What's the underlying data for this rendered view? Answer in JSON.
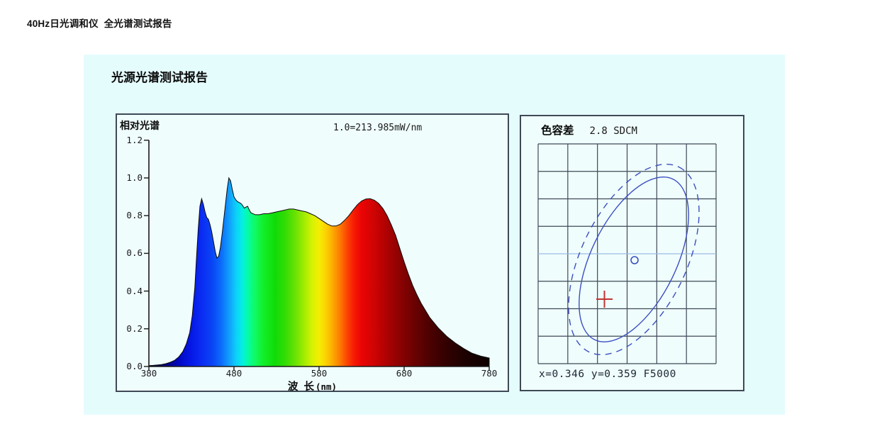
{
  "page": {
    "title": "40Hz日光调和仪  全光谱测试报告"
  },
  "panel": {
    "title": "光源光谱测试报告"
  },
  "spectrum_chart": {
    "label": "相对光谱",
    "scale_note": "1.0=213.985mW/nm",
    "xlabel_cn": "波 长",
    "xlabel_unit": "(nm)",
    "ytick_labels": [
      "1.2",
      "1.0",
      "0.8",
      "0.6",
      "0.4",
      "0.2",
      "0.0"
    ],
    "xtick_labels": [
      "380",
      "480",
      "580",
      "680",
      "780"
    ]
  },
  "tolerance_chart": {
    "label": "色容差",
    "value": "2.8 SDCM",
    "result": "x=0.346 y=0.359 F5000"
  },
  "colors": {
    "panel_bg": "#e5fcfd",
    "chart_bg": "#f0fdfd",
    "box_border": "#3d4a56",
    "axis": "#1a1a1a",
    "grid_line": "#3d4a56",
    "grid_highlight_line": "#9dbce8",
    "ellipse_blue": "#3a4fc0",
    "cross_red": "#c03434",
    "spectrum_stops": [
      [
        380,
        "#02023a"
      ],
      [
        400,
        "#03037a"
      ],
      [
        415,
        "#0208c0"
      ],
      [
        430,
        "#0618e8"
      ],
      [
        442,
        "#0a2cf2"
      ],
      [
        455,
        "#0a46f6"
      ],
      [
        465,
        "#0c6cfa"
      ],
      [
        475,
        "#10a2fc"
      ],
      [
        483,
        "#0cd2f8"
      ],
      [
        490,
        "#04f0e0"
      ],
      [
        497,
        "#06fca0"
      ],
      [
        505,
        "#10fa62"
      ],
      [
        515,
        "#12ee28"
      ],
      [
        528,
        "#10dc08"
      ],
      [
        540,
        "#32dc04"
      ],
      [
        552,
        "#6ae204"
      ],
      [
        563,
        "#a4ec02"
      ],
      [
        572,
        "#d6f202"
      ],
      [
        580,
        "#f4ee02"
      ],
      [
        588,
        "#fcd202"
      ],
      [
        596,
        "#fcaa02"
      ],
      [
        604,
        "#fc7e02"
      ],
      [
        612,
        "#fc4a02"
      ],
      [
        620,
        "#f81e04"
      ],
      [
        630,
        "#ea0404"
      ],
      [
        642,
        "#d40404"
      ],
      [
        655,
        "#b80202"
      ],
      [
        670,
        "#960202"
      ],
      [
        690,
        "#6e0202"
      ],
      [
        710,
        "#4c0101"
      ],
      [
        730,
        "#320101"
      ],
      [
        750,
        "#1e0101"
      ],
      [
        780,
        "#0c0000"
      ]
    ]
  },
  "chart_data": [
    {
      "type": "area",
      "title": "相对光谱",
      "annotation": "1.0=213.985mW/nm",
      "xlabel": "波 长(nm)",
      "ylabel": "",
      "xlim": [
        380,
        780
      ],
      "ylim": [
        0,
        1.2
      ],
      "xticks": [
        380,
        480,
        580,
        680,
        780
      ],
      "yticks": [
        0.0,
        0.2,
        0.4,
        0.6,
        0.8,
        1.0,
        1.2
      ],
      "x": [
        380,
        385,
        390,
        395,
        400,
        405,
        410,
        415,
        420,
        424,
        428,
        431,
        434,
        436,
        438,
        440,
        442,
        444,
        446,
        448,
        450,
        452,
        454,
        456,
        458,
        460,
        462,
        464,
        466,
        468,
        470,
        472,
        474,
        476,
        478,
        480,
        482,
        484,
        486,
        488,
        490,
        492,
        494,
        496,
        498,
        500,
        505,
        510,
        515,
        520,
        525,
        530,
        535,
        540,
        545,
        550,
        555,
        560,
        565,
        570,
        575,
        580,
        585,
        590,
        595,
        600,
        605,
        610,
        615,
        620,
        625,
        630,
        635,
        640,
        645,
        650,
        655,
        660,
        665,
        670,
        675,
        680,
        685,
        690,
        695,
        700,
        710,
        720,
        730,
        740,
        750,
        760,
        770,
        780
      ],
      "values": [
        0.005,
        0.006,
        0.008,
        0.01,
        0.015,
        0.022,
        0.032,
        0.05,
        0.08,
        0.12,
        0.18,
        0.27,
        0.42,
        0.58,
        0.73,
        0.85,
        0.89,
        0.86,
        0.82,
        0.79,
        0.78,
        0.75,
        0.71,
        0.66,
        0.61,
        0.575,
        0.585,
        0.63,
        0.7,
        0.78,
        0.86,
        0.94,
        1.0,
        0.985,
        0.94,
        0.9,
        0.885,
        0.875,
        0.87,
        0.865,
        0.855,
        0.84,
        0.845,
        0.85,
        0.83,
        0.815,
        0.805,
        0.805,
        0.81,
        0.81,
        0.815,
        0.82,
        0.825,
        0.83,
        0.835,
        0.835,
        0.83,
        0.825,
        0.82,
        0.81,
        0.8,
        0.785,
        0.77,
        0.755,
        0.745,
        0.745,
        0.755,
        0.775,
        0.8,
        0.83,
        0.858,
        0.878,
        0.888,
        0.89,
        0.882,
        0.865,
        0.838,
        0.8,
        0.75,
        0.695,
        0.625,
        0.555,
        0.49,
        0.43,
        0.38,
        0.335,
        0.26,
        0.205,
        0.16,
        0.125,
        0.095,
        0.07,
        0.055,
        0.045
      ],
      "fill": "wavelength-rainbow-gradient"
    },
    {
      "type": "scatter",
      "title": "色容差",
      "sdcm": 2.8,
      "cie_x": 0.346,
      "cie_y": 0.359,
      "reference": "F5000",
      "grid": {
        "cols": 6,
        "rows": 8
      },
      "ellipses": [
        {
          "style": "solid",
          "rx": 126,
          "ry": 60,
          "rotation_deg": -64
        },
        {
          "style": "dashed",
          "rx": 145,
          "ry": 74,
          "rotation_deg": -64
        }
      ],
      "markers": [
        {
          "shape": "circle",
          "meaning": "measured-point"
        },
        {
          "shape": "cross",
          "meaning": "target-point"
        }
      ]
    }
  ]
}
